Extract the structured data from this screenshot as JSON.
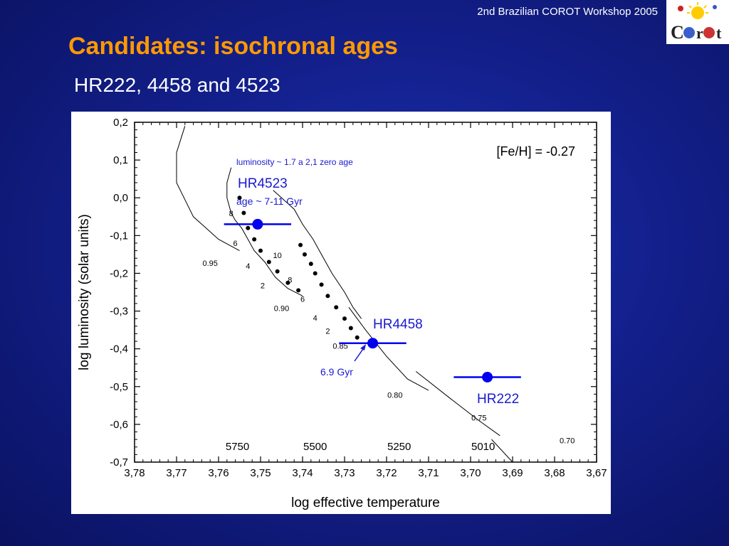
{
  "header": {
    "workshop": "2nd Brazilian COROT Workshop 2005",
    "logo_text": "COROT"
  },
  "slide": {
    "title": "Candidates: isochronal ages",
    "subtitle": "HR222, 4458 and 4523"
  },
  "colors": {
    "title": "#ff9900",
    "background": "#13208c",
    "data_points": "#0000ee",
    "annotation_blue": "#1a1ad0"
  },
  "chart_data": {
    "type": "scatter",
    "xlabel": "log effective temperature",
    "ylabel": "log luminosity (solar units)",
    "xlim": [
      3.78,
      3.67
    ],
    "ylim": [
      -0.7,
      0.2
    ],
    "x_ticks": [
      "3,78",
      "3,77",
      "3,76",
      "3,75",
      "3,74",
      "3,73",
      "3,72",
      "3,71",
      "3,70",
      "3,69",
      "3,68",
      "3,67"
    ],
    "y_ticks": [
      "0,2",
      "0,1",
      "0,0",
      "-0,1",
      "-0,2",
      "-0,3",
      "-0,4",
      "-0,5",
      "-0,6",
      "-0,7"
    ],
    "metallicity": "[Fe/H] = -0.27",
    "stars": [
      {
        "name": "HR4523",
        "x": 3.7507,
        "y": -0.07,
        "xerr": 0.008,
        "label": "HR4523",
        "note": "age ~ 7-11 Gyr"
      },
      {
        "name": "HR4458",
        "x": 3.7233,
        "y": -0.385,
        "xerr": 0.008,
        "label": "HR4458",
        "note": ""
      },
      {
        "name": "HR222",
        "x": 3.696,
        "y": -0.475,
        "xerr": 0.008,
        "label": "HR222",
        "note": ""
      }
    ],
    "annotations": {
      "luminosity_note": "luminosity ~ 1.7 a 2,1 zero age",
      "age_arrow_label": "6.9 Gyr"
    },
    "temperatures": [
      {
        "label": "5750",
        "x": 3.7555
      },
      {
        "label": "5500",
        "x": 3.737
      },
      {
        "label": "5250",
        "x": 3.717
      },
      {
        "label": "5010",
        "x": 3.697
      }
    ],
    "tracks": [
      {
        "mass": "0.95",
        "x": [
          3.768,
          3.77,
          3.77,
          3.766,
          3.76,
          3.755
        ],
        "y": [
          0.19,
          0.12,
          0.04,
          -0.05,
          -0.11,
          -0.14
        ]
      },
      {
        "mass": "0.90",
        "x": [
          3.757,
          3.758,
          3.758,
          3.7575,
          3.757,
          3.756,
          3.7545,
          3.753,
          3.7515,
          3.749,
          3.7465,
          3.7435,
          3.74
        ],
        "y": [
          0.08,
          0.04,
          0.0,
          -0.02,
          -0.04,
          -0.06,
          -0.08,
          -0.11,
          -0.14,
          -0.17,
          -0.21,
          -0.24,
          -0.26
        ]
      },
      {
        "mass": "0.85",
        "x": [
          3.747,
          3.745,
          3.742,
          3.74,
          3.7375,
          3.735,
          3.733,
          3.73,
          3.728,
          3.726
        ],
        "y": [
          0.02,
          0.0,
          -0.03,
          -0.07,
          -0.11,
          -0.16,
          -0.2,
          -0.25,
          -0.29,
          -0.32
        ]
      },
      {
        "mass": "0.80",
        "x": [
          3.729,
          3.725,
          3.72,
          3.715,
          3.71
        ],
        "y": [
          -0.29,
          -0.35,
          -0.42,
          -0.48,
          -0.51
        ]
      },
      {
        "mass": "0.75",
        "x": [
          3.713,
          3.705,
          3.698,
          3.693
        ],
        "y": [
          -0.46,
          -0.53,
          -0.59,
          -0.63
        ]
      },
      {
        "mass": "0.70",
        "x": [
          3.695,
          3.69
        ],
        "y": [
          -0.64,
          -0.7
        ]
      }
    ],
    "age_points": [
      {
        "x": 3.755,
        "y": 0.0
      },
      {
        "x": 3.754,
        "y": -0.04
      },
      {
        "x": 3.753,
        "y": -0.08
      },
      {
        "x": 3.7515,
        "y": -0.11
      },
      {
        "x": 3.75,
        "y": -0.14
      },
      {
        "x": 3.748,
        "y": -0.17
      },
      {
        "x": 3.746,
        "y": -0.195
      },
      {
        "x": 3.7435,
        "y": -0.225
      },
      {
        "x": 3.741,
        "y": -0.245
      },
      {
        "x": 3.7405,
        "y": -0.125
      },
      {
        "x": 3.7395,
        "y": -0.15
      },
      {
        "x": 3.738,
        "y": -0.175
      },
      {
        "x": 3.737,
        "y": -0.2
      },
      {
        "x": 3.7355,
        "y": -0.23
      },
      {
        "x": 3.734,
        "y": -0.26
      },
      {
        "x": 3.732,
        "y": -0.29
      },
      {
        "x": 3.73,
        "y": -0.32
      },
      {
        "x": 3.7285,
        "y": -0.345
      },
      {
        "x": 3.727,
        "y": -0.37
      }
    ],
    "age_labels": [
      {
        "label": "8",
        "x": 3.757,
        "y": -0.049
      },
      {
        "label": "6",
        "x": 3.756,
        "y": -0.128
      },
      {
        "label": "4",
        "x": 3.753,
        "y": -0.188
      },
      {
        "label": "2",
        "x": 3.7495,
        "y": -0.24
      },
      {
        "label": "10",
        "x": 3.746,
        "y": -0.16
      },
      {
        "label": "8",
        "x": 3.743,
        "y": -0.225
      },
      {
        "label": "6",
        "x": 3.74,
        "y": -0.275
      },
      {
        "label": "4",
        "x": 3.737,
        "y": -0.325
      },
      {
        "label": "2",
        "x": 3.734,
        "y": -0.36
      }
    ],
    "mass_labels": [
      {
        "label": "0.95",
        "x": 3.762,
        "y": -0.18
      },
      {
        "label": "0.90",
        "x": 3.745,
        "y": -0.3
      },
      {
        "label": "0.85",
        "x": 3.731,
        "y": -0.4
      },
      {
        "label": "0.80",
        "x": 3.718,
        "y": -0.53
      },
      {
        "label": "0.75",
        "x": 3.698,
        "y": -0.59
      },
      {
        "label": "0.70",
        "x": 3.677,
        "y": -0.65
      }
    ]
  }
}
